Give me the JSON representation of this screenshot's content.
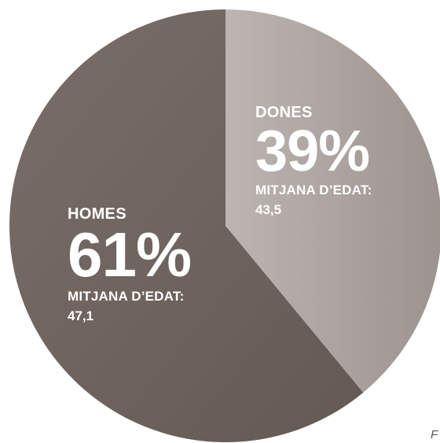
{
  "chart_data": {
    "type": "pie",
    "slices": [
      {
        "name": "HOMES",
        "value": 61,
        "value_label": "61%",
        "age_title": "MITJANA D’EDAT:",
        "age_value": "47,1",
        "color": "#6f635d"
      },
      {
        "name": "DONES",
        "value": 39,
        "value_label": "39%",
        "age_title": "MITJANA D’EDAT:",
        "age_value": "43,5",
        "color": "#b0a7a3"
      }
    ]
  },
  "corner_text": "F"
}
